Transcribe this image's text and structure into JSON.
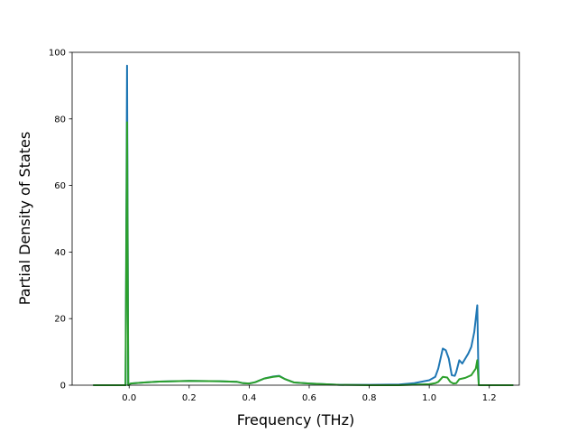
{
  "chart_data": {
    "type": "line",
    "title": "",
    "xlabel": "Frequency (THz)",
    "ylabel": "Partial Density of States",
    "xlim": [
      -0.19,
      1.3
    ],
    "ylim": [
      0,
      100
    ],
    "xticks": [
      0.0,
      0.2,
      0.4,
      0.6,
      0.8,
      1.0,
      1.2
    ],
    "xtick_labels": [
      "0.0",
      "0.2",
      "0.4",
      "0.6",
      "0.8",
      "1.0",
      "1.2"
    ],
    "yticks": [
      0,
      20,
      40,
      60,
      80,
      100
    ],
    "ytick_labels": [
      "0",
      "20",
      "40",
      "60",
      "80",
      "100"
    ],
    "grid": false,
    "legend": "none",
    "series": [
      {
        "color": "#1f77b4",
        "x": [
          -0.12,
          -0.02,
          -0.012,
          -0.007,
          -0.003,
          0.005,
          0.05,
          0.1,
          0.2,
          0.3,
          0.36,
          0.38,
          0.4,
          0.42,
          0.45,
          0.48,
          0.5,
          0.52,
          0.55,
          0.6,
          0.7,
          0.8,
          0.9,
          0.95,
          1.0,
          1.02,
          1.03,
          1.045,
          1.055,
          1.065,
          1.075,
          1.085,
          1.09,
          1.1,
          1.11,
          1.12,
          1.13,
          1.14,
          1.15,
          1.155,
          1.16,
          1.163,
          1.165,
          1.18,
          1.28
        ],
        "y": [
          0,
          0,
          0,
          96,
          0,
          0.5,
          0.8,
          1.1,
          1.3,
          1.2,
          1.0,
          0.6,
          0.5,
          0.9,
          2.0,
          2.6,
          2.8,
          1.8,
          0.8,
          0.5,
          0.1,
          0.1,
          0.2,
          0.6,
          1.5,
          2.5,
          5.0,
          11.0,
          10.5,
          8.0,
          3.0,
          2.8,
          4.0,
          7.5,
          6.5,
          8.0,
          9.5,
          11.5,
          16.0,
          20.0,
          24.0,
          8.0,
          0,
          0,
          0
        ]
      },
      {
        "color": "#2ca02c",
        "x": [
          -0.12,
          -0.02,
          -0.012,
          -0.007,
          -0.003,
          0.005,
          0.05,
          0.1,
          0.2,
          0.3,
          0.36,
          0.38,
          0.4,
          0.42,
          0.45,
          0.48,
          0.5,
          0.52,
          0.55,
          0.6,
          0.7,
          0.8,
          0.9,
          1.0,
          1.02,
          1.03,
          1.045,
          1.06,
          1.07,
          1.08,
          1.09,
          1.1,
          1.12,
          1.14,
          1.155,
          1.16,
          1.163,
          1.165,
          1.18,
          1.28
        ],
        "y": [
          0,
          0,
          0,
          79,
          0,
          0.5,
          0.8,
          1.1,
          1.3,
          1.2,
          1.0,
          0.6,
          0.5,
          0.9,
          2.0,
          2.5,
          2.7,
          1.8,
          0.8,
          0.5,
          0.1,
          0.0,
          0.0,
          0.3,
          0.6,
          1.0,
          2.5,
          2.3,
          1.0,
          0.5,
          0.6,
          1.8,
          2.2,
          3.0,
          5.0,
          7.5,
          3.0,
          0,
          0,
          0
        ]
      }
    ]
  }
}
